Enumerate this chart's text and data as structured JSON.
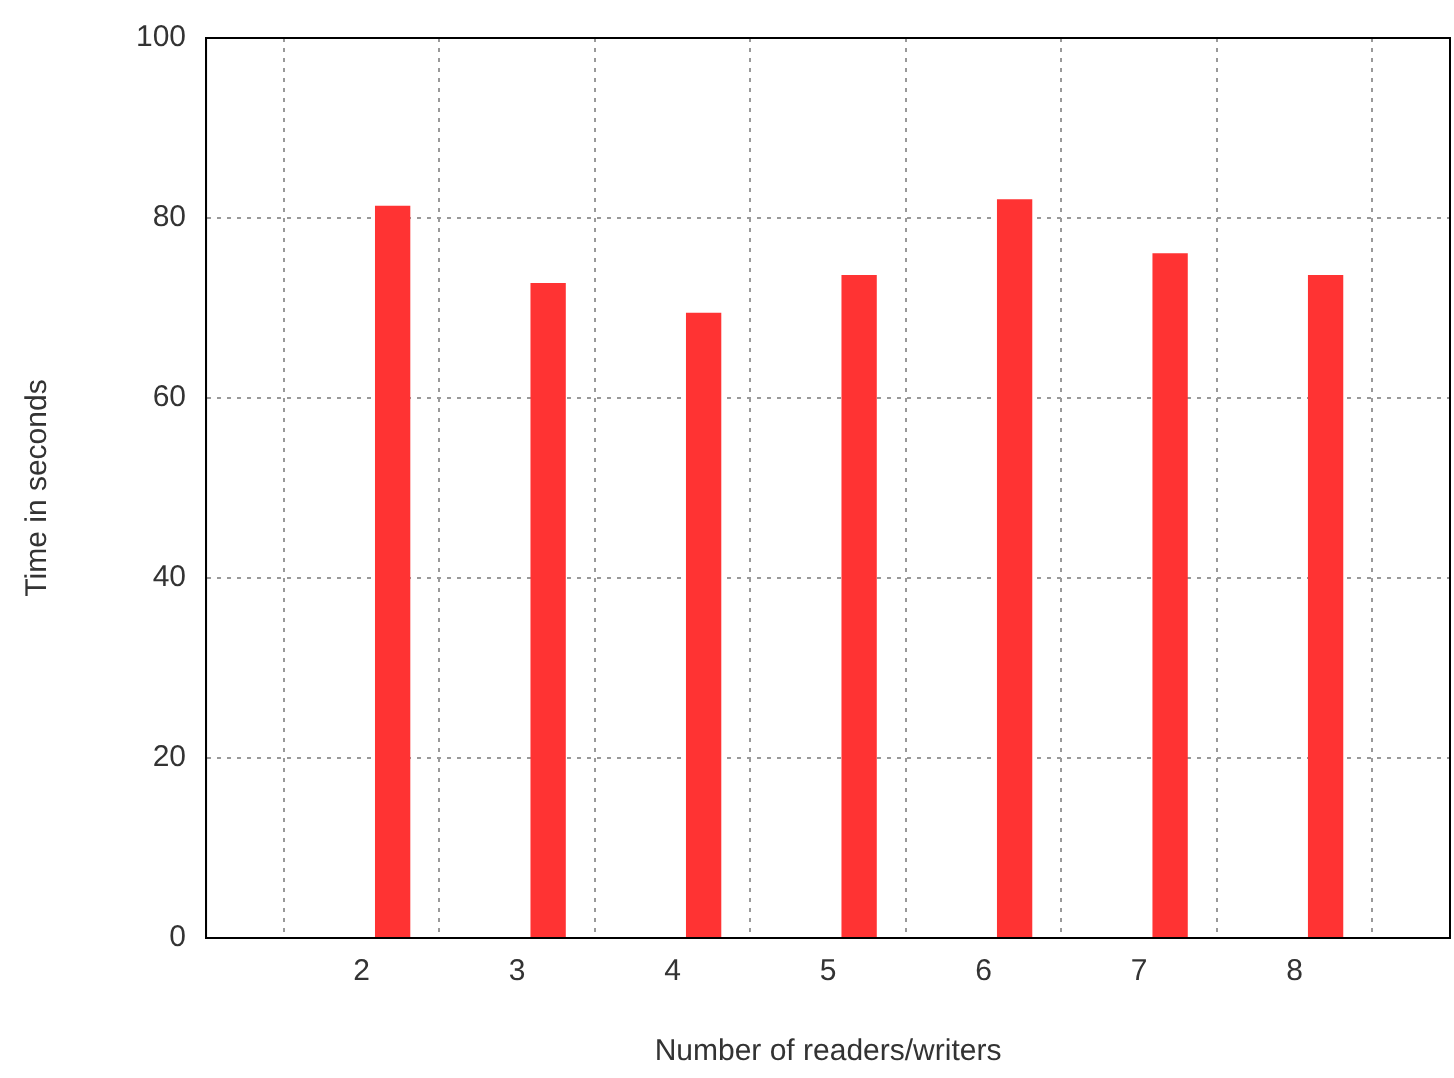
{
  "chart_data": {
    "type": "bar",
    "xlabel": "Number of readers/writers",
    "ylabel": "Time in seconds",
    "x": [
      2.2,
      3.2,
      4.2,
      5.2,
      6.2,
      7.2,
      8.2
    ],
    "values": [
      81.3,
      72.7,
      69.4,
      73.6,
      82.0,
      76.0,
      73.6
    ],
    "color": "#ff3333",
    "xlim": [
      1,
      9
    ],
    "xticks": [
      2,
      3,
      4,
      5,
      6,
      7,
      8
    ],
    "ylim": [
      0,
      100
    ],
    "yticks": [
      0,
      20,
      40,
      60,
      80,
      100
    ],
    "grid": true,
    "legend": false
  }
}
